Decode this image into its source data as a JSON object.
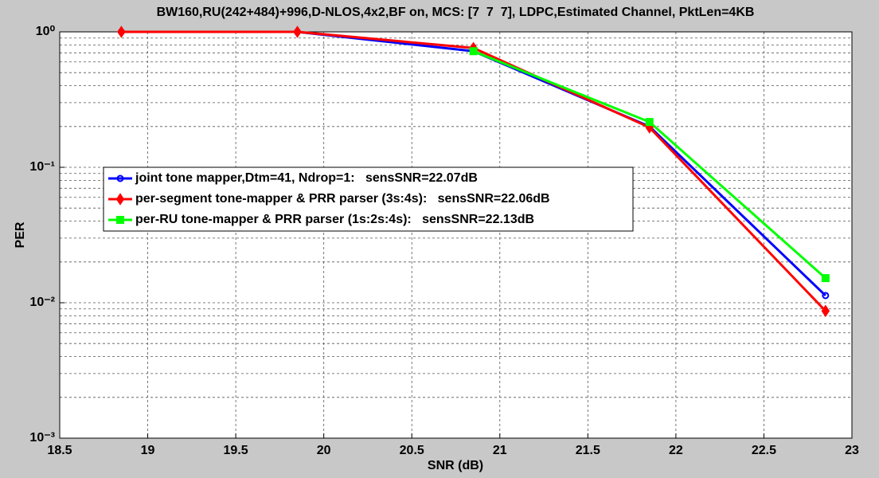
{
  "chart_data": {
    "type": "line",
    "title": "BW160,RU(242+484)+996,D-NLOS,4x2,BF on, MCS: [7  7  7], LDPC,Estimated Channel, PktLen=4KB",
    "x_label": "SNR (dB)",
    "y_label": "PER",
    "x": [
      18.85,
      19.85,
      20.85,
      21.85,
      22.85
    ],
    "series": [
      {
        "name": "joint tone mapper,Dtm=41, Ndrop=1:   sensSNR=22.07dB",
        "color": "#0000ff",
        "marker": "circle",
        "values": [
          1,
          1,
          0.72,
          0.2,
          0.0113
        ]
      },
      {
        "name": "per-segment tone-mapper & PRR parser (3s:4s):   sensSNR=22.06dB",
        "color": "#ff0000",
        "marker": "diamond",
        "values": [
          1,
          1,
          0.76,
          0.197,
          0.0087
        ]
      },
      {
        "name": "per-RU tone-mapper & PRR parser (1s:2s:4s):   sensSNR=22.13dB",
        "color": "#00ff00",
        "marker": "square",
        "values": [
          null,
          null,
          0.72,
          0.216,
          0.0152
        ]
      }
    ],
    "xlim": [
      18.5,
      23
    ],
    "xticks": [
      18.5,
      19,
      19.5,
      20,
      20.5,
      21,
      21.5,
      22,
      22.5,
      23
    ],
    "ylim": [
      0.001,
      1
    ],
    "log_y": true,
    "yticks": [
      {
        "value": 0.001,
        "label": "10⁻³"
      },
      {
        "value": 0.01,
        "label": "10⁻²"
      },
      {
        "value": 0.1,
        "label": "10⁻¹"
      },
      {
        "value": 1,
        "label": "10⁰"
      }
    ],
    "grid": true,
    "minor_grid": true,
    "legend": "center-left"
  }
}
